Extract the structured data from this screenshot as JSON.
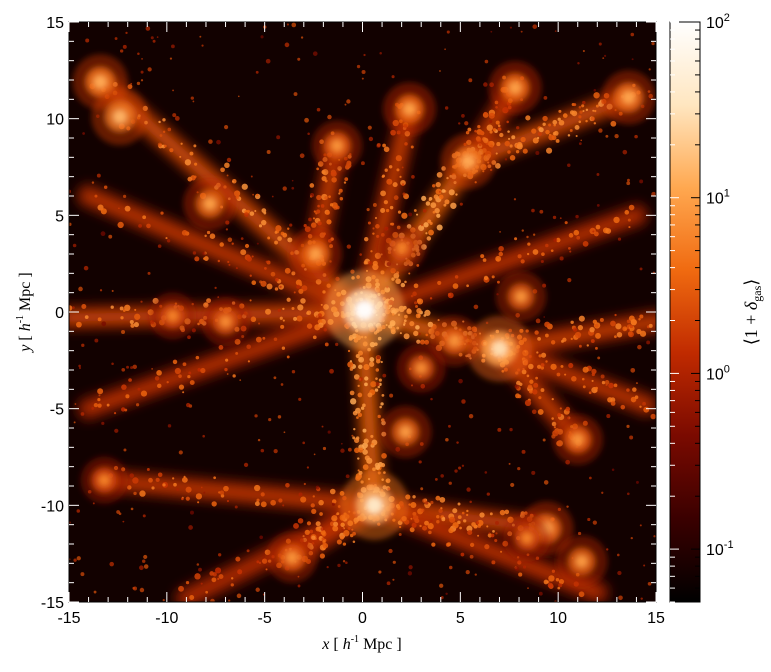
{
  "chart_data": {
    "type": "heatmap",
    "title": "",
    "xlabel": "x [ h-1 Mpc ]",
    "ylabel": "y [ h-1 Mpc ]",
    "xlabel_parts": {
      "var": "x",
      "pre": " [ ",
      "h": "h",
      "exp": "-1",
      "post": " Mpc ]"
    },
    "ylabel_parts": {
      "var": "y",
      "pre": " [ ",
      "h": "h",
      "exp": "-1",
      "post": " Mpc ]"
    },
    "xlim": [
      -15,
      15
    ],
    "ylim": [
      -15,
      15
    ],
    "xticks": [
      -15,
      -10,
      -5,
      0,
      5,
      10,
      15
    ],
    "yticks": [
      -15,
      -10,
      -5,
      0,
      5,
      10,
      15
    ],
    "colorbar": {
      "scale": "log",
      "range": [
        0.05,
        100
      ],
      "label": "⟨1 + δgas⟩",
      "label_parts": {
        "open": "⟨1 + ",
        "sym": "δ",
        "sub": "gas",
        "close": "⟩"
      },
      "ticks": [
        {
          "value": 0.1,
          "base": "10",
          "exp": "-1"
        },
        {
          "value": 1,
          "base": "10",
          "exp": "0"
        },
        {
          "value": 10,
          "base": "10",
          "exp": "1"
        },
        {
          "value": 100,
          "base": "10",
          "exp": "2"
        }
      ],
      "colors": [
        "#000000",
        "#3a0000",
        "#7a0a00",
        "#c02a00",
        "#f06a10",
        "#ffa850",
        "#ffe6c0",
        "#ffffff"
      ]
    },
    "features": {
      "background_color": "#120100",
      "halos": [
        {
          "x": 0.1,
          "y": 0.1,
          "density": 100
        },
        {
          "x": 7.0,
          "y": -1.9,
          "density": 30
        },
        {
          "x": 0.6,
          "y": -10.0,
          "density": 40
        },
        {
          "x": -13.4,
          "y": 11.9,
          "density": 12
        },
        {
          "x": -12.4,
          "y": 10.1,
          "density": 14
        },
        {
          "x": -7.8,
          "y": 5.6,
          "density": 10
        },
        {
          "x": -2.4,
          "y": 3.0,
          "density": 10
        },
        {
          "x": 5.4,
          "y": 7.8,
          "density": 12
        },
        {
          "x": 2.4,
          "y": 10.5,
          "density": 10
        },
        {
          "x": -1.3,
          "y": 8.6,
          "density": 8
        },
        {
          "x": 7.8,
          "y": 11.6,
          "density": 10
        },
        {
          "x": 13.6,
          "y": 11.1,
          "density": 11
        },
        {
          "x": 8.1,
          "y": 0.8,
          "density": 8
        },
        {
          "x": 4.7,
          "y": -1.5,
          "density": 8
        },
        {
          "x": 3.0,
          "y": -2.9,
          "density": 7
        },
        {
          "x": 2.2,
          "y": -6.2,
          "density": 9
        },
        {
          "x": 9.4,
          "y": -11.2,
          "density": 11
        },
        {
          "x": 11.2,
          "y": -12.9,
          "density": 9
        },
        {
          "x": 11.0,
          "y": -6.6,
          "density": 8
        },
        {
          "x": -3.6,
          "y": -12.7,
          "density": 8
        },
        {
          "x": -7.0,
          "y": -0.5,
          "density": 7
        },
        {
          "x": -9.7,
          "y": -0.2,
          "density": 6
        },
        {
          "x": -13.2,
          "y": -8.7,
          "density": 6
        },
        {
          "x": 8.4,
          "y": -11.7,
          "density": 6
        },
        {
          "x": 2.0,
          "y": 3.3,
          "density": 6
        }
      ],
      "filaments": [
        {
          "from": [
            0,
            0
          ],
          "to": [
            -13.4,
            11.9
          ],
          "density": 3
        },
        {
          "from": [
            0,
            0
          ],
          "to": [
            5.4,
            7.8
          ],
          "density": 4
        },
        {
          "from": [
            5.4,
            7.8
          ],
          "to": [
            13.6,
            11.1
          ],
          "density": 3
        },
        {
          "from": [
            0,
            0
          ],
          "to": [
            7.0,
            -1.9
          ],
          "density": 4
        },
        {
          "from": [
            7.0,
            -1.9
          ],
          "to": [
            15,
            -0.5
          ],
          "density": 2
        },
        {
          "from": [
            0,
            0
          ],
          "to": [
            0.6,
            -10.0
          ],
          "density": 4
        },
        {
          "from": [
            0.6,
            -10.0
          ],
          "to": [
            -3.6,
            -12.7
          ],
          "density": 2.5
        },
        {
          "from": [
            0.6,
            -10.0
          ],
          "to": [
            9.4,
            -11.2
          ],
          "density": 2.5
        },
        {
          "from": [
            0,
            0
          ],
          "to": [
            -15,
            -0.3
          ],
          "density": 2.5
        },
        {
          "from": [
            -2.4,
            3.0
          ],
          "to": [
            -1.3,
            8.6
          ],
          "density": 2
        },
        {
          "from": [
            0,
            0
          ],
          "to": [
            2.4,
            10.5
          ],
          "density": 2
        },
        {
          "from": [
            5.4,
            7.8
          ],
          "to": [
            7.8,
            11.6
          ],
          "density": 2
        },
        {
          "from": [
            7.0,
            -1.9
          ],
          "to": [
            11.0,
            -6.6
          ],
          "density": 2
        },
        {
          "from": [
            7.0,
            -1.9
          ],
          "to": [
            14.5,
            -4.8
          ],
          "density": 1.8
        },
        {
          "from": [
            0.6,
            -10.0
          ],
          "to": [
            -13.2,
            -8.7
          ],
          "density": 1.8
        },
        {
          "from": [
            0,
            0
          ],
          "to": [
            -14,
            6.0
          ],
          "density": 1.8
        },
        {
          "from": [
            0,
            0
          ],
          "to": [
            14,
            5.0
          ],
          "density": 1.6
        },
        {
          "from": [
            0.6,
            -10.0
          ],
          "to": [
            12.0,
            -14.5
          ],
          "density": 1.6
        },
        {
          "from": [
            0,
            0
          ],
          "to": [
            -14,
            -5.0
          ],
          "density": 1.6
        },
        {
          "from": [
            0.6,
            -10.0
          ],
          "to": [
            -9.0,
            -14.8
          ],
          "density": 1.5
        }
      ]
    }
  }
}
